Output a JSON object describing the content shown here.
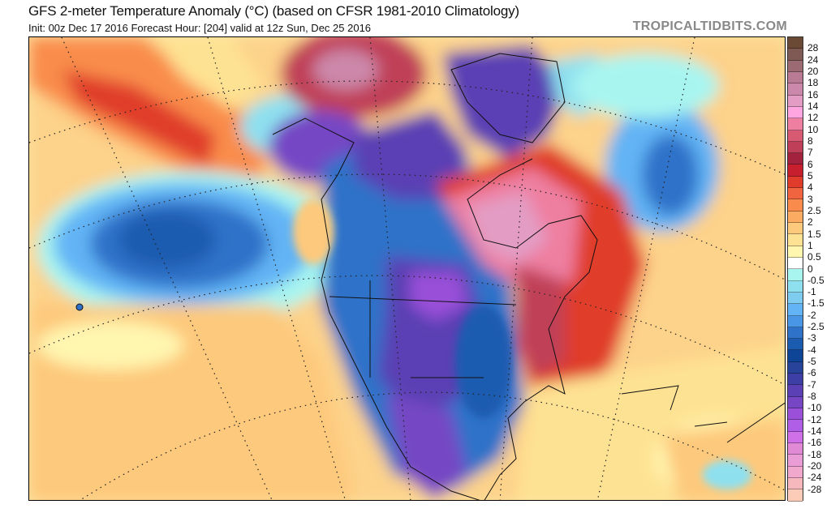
{
  "header": {
    "title": "GFS 2-meter Temperature Anomaly (°C) (based on CFSR 1981-2010 Climatology)",
    "subtitle": "Init: 00z Dec 17 2016   Forecast Hour: [204]   valid at 12z Sun, Dec 25 2016",
    "brand": "TROPICALTIDBITS.COM"
  },
  "colorbar": {
    "labels": [
      "28",
      "24",
      "20",
      "18",
      "16",
      "14",
      "12",
      "10",
      "8",
      "7",
      "6",
      "5",
      "4",
      "3",
      "2.5",
      "2",
      "1.5",
      "1",
      "0.5",
      "0",
      "-0.5",
      "-1",
      "-1.5",
      "-2",
      "-2.5",
      "-3",
      "-4",
      "-5",
      "-6",
      "-7",
      "-8",
      "-10",
      "-12",
      "-14",
      "-16",
      "-18",
      "-20",
      "-24",
      "-28"
    ],
    "colors": [
      "#6b4a35",
      "#7f5a55",
      "#9b6a72",
      "#b97a93",
      "#cc88aa",
      "#e39dc5",
      "#ffa6e0",
      "#ee7fa0",
      "#d85a72",
      "#c03f58",
      "#a3233e",
      "#c81f2e",
      "#e03c2c",
      "#f0643f",
      "#f98c4c",
      "#fcab62",
      "#fdc97c",
      "#fee293",
      "#fff6b0",
      "#ffffff",
      "#a8f5f0",
      "#8ee0ef",
      "#7ecdf1",
      "#62b4f5",
      "#4a96e6",
      "#2e72c9",
      "#1c5cb0",
      "#0f4596",
      "#27439a",
      "#3d3fa6",
      "#5a40b4",
      "#7646c4",
      "#9a50d9",
      "#b05de8",
      "#d070e8",
      "#e08ad6",
      "#ea9cd6",
      "#f0a8cc",
      "#f7b8bd",
      "#fdccb8"
    ]
  }
}
